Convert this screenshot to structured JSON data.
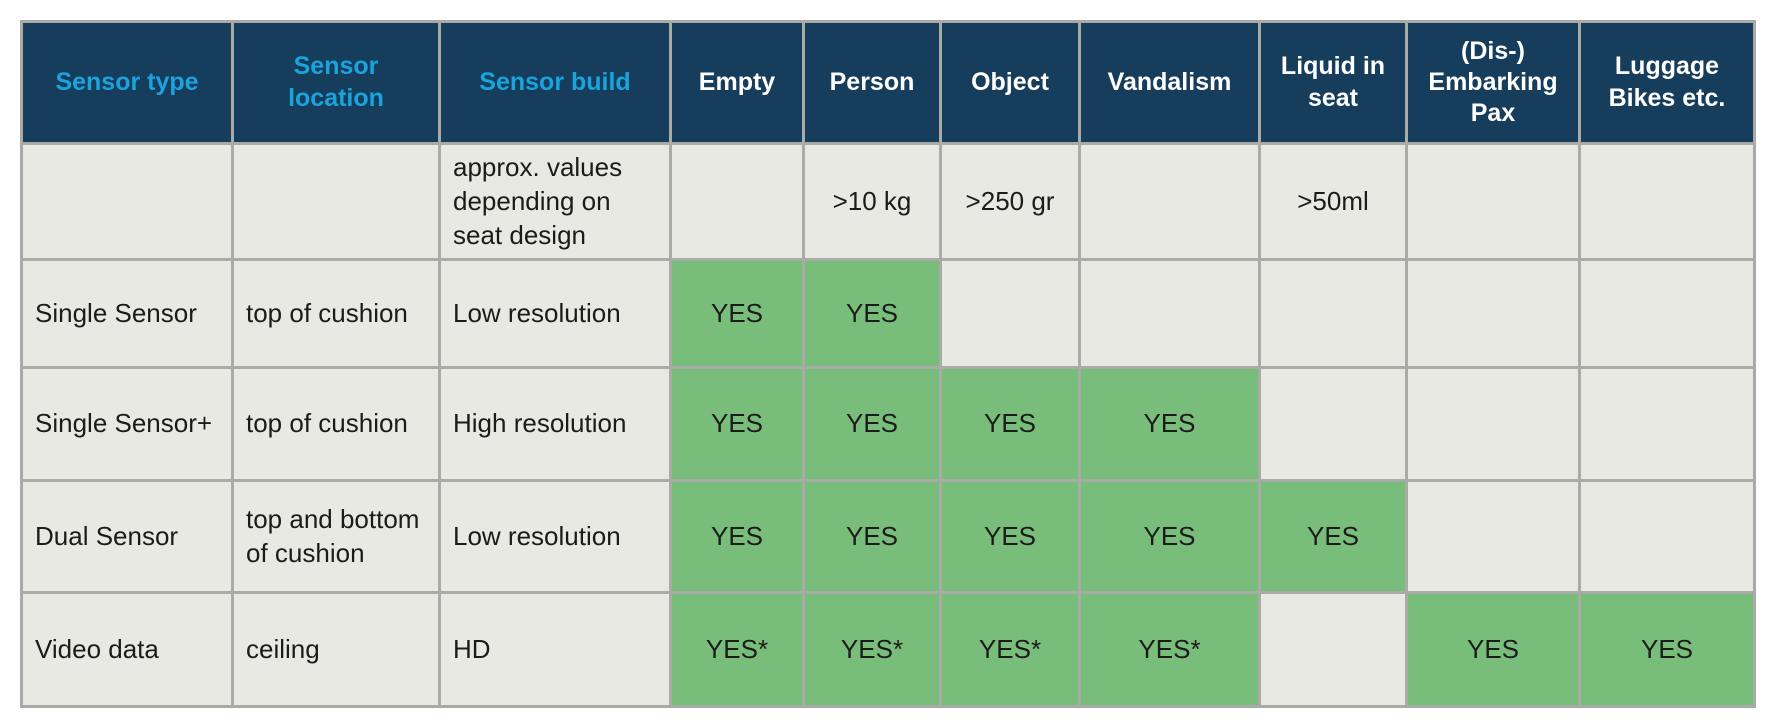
{
  "table": {
    "header": [
      "Sensor type",
      "Sensor location",
      "Sensor build",
      "Empty",
      "Person",
      "Object",
      "Vandalism",
      "Liquid in seat",
      "(Dis-) Embarking Pax",
      "Luggage Bikes etc."
    ],
    "rows": [
      [
        null,
        null,
        "approx. values depending on seat design",
        null,
        ">10 kg",
        ">250 gr",
        null,
        ">50ml",
        null,
        null
      ],
      [
        "Single Sensor",
        "top of cushion",
        "Low resolution",
        "YES",
        "YES",
        null,
        null,
        null,
        null,
        null
      ],
      [
        "Single Sensor+",
        "top of cushion",
        "High resolution",
        "YES",
        "YES",
        "YES",
        "YES",
        null,
        null,
        null
      ],
      [
        "Dual Sensor",
        "top and bottom of cushion",
        "Low resolution",
        "YES",
        "YES",
        "YES",
        "YES",
        "YES",
        null,
        null
      ],
      [
        "Video data",
        "ceiling",
        "HD",
        "YES*",
        "YES*",
        "YES*",
        "YES*",
        null,
        "YES",
        "YES"
      ]
    ]
  }
}
